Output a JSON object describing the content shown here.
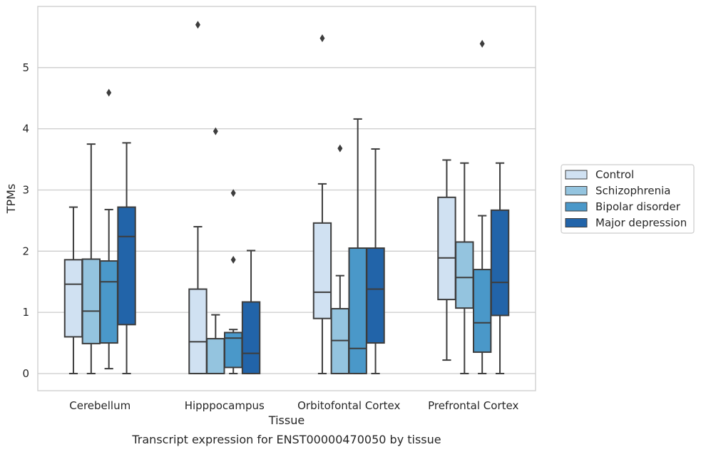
{
  "chart_data": {
    "type": "box",
    "title": "",
    "caption": "Transcript expression for ENST00000470050 by tissue",
    "xlabel": "Tissue",
    "ylabel": "TPMs",
    "ylim": [
      -0.28,
      6.0
    ],
    "yticks": [
      "0",
      "1",
      "2",
      "3",
      "4",
      "5"
    ],
    "grid": true,
    "legend_position": "right",
    "categories": [
      "Cerebellum",
      "Hipppocampus",
      "Orbitofontal Cortex",
      "Prefrontal Cortex"
    ],
    "series": [
      {
        "name": "Control",
        "color": "#d0e1f2",
        "boxes": [
          {
            "whislo": 0.0,
            "q1": 0.6,
            "med": 1.46,
            "q3": 1.86,
            "whishi": 2.72,
            "fliers": []
          },
          {
            "whislo": 0.0,
            "q1": 0.0,
            "med": 0.52,
            "q3": 1.38,
            "whishi": 2.4,
            "fliers": [
              5.7
            ]
          },
          {
            "whislo": 0.0,
            "q1": 0.9,
            "med": 1.33,
            "q3": 2.46,
            "whishi": 3.1,
            "fliers": [
              5.48
            ]
          },
          {
            "whislo": 0.22,
            "q1": 1.21,
            "med": 1.89,
            "q3": 2.88,
            "whishi": 3.49,
            "fliers": []
          }
        ]
      },
      {
        "name": "Schizophrenia",
        "color": "#94c4df",
        "boxes": [
          {
            "whislo": 0.0,
            "q1": 0.49,
            "med": 1.02,
            "q3": 1.87,
            "whishi": 3.75,
            "fliers": []
          },
          {
            "whislo": 0.0,
            "q1": 0.0,
            "med": 0.0,
            "q3": 0.57,
            "whishi": 0.96,
            "fliers": [
              3.96
            ]
          },
          {
            "whislo": 0.0,
            "q1": 0.0,
            "med": 0.54,
            "q3": 1.06,
            "whishi": 1.6,
            "fliers": [
              3.68
            ]
          },
          {
            "whislo": 0.0,
            "q1": 1.07,
            "med": 1.57,
            "q3": 2.15,
            "whishi": 3.44,
            "fliers": []
          }
        ]
      },
      {
        "name": "Bipolar disorder",
        "color": "#4a98c9",
        "boxes": [
          {
            "whislo": 0.08,
            "q1": 0.5,
            "med": 1.5,
            "q3": 1.84,
            "whishi": 2.68,
            "fliers": [
              4.59
            ]
          },
          {
            "whislo": 0.0,
            "q1": 0.1,
            "med": 0.58,
            "q3": 0.67,
            "whishi": 0.72,
            "fliers": [
              2.95,
              1.86
            ]
          },
          {
            "whislo": 0.0,
            "q1": 0.0,
            "med": 0.41,
            "q3": 2.05,
            "whishi": 4.16,
            "fliers": []
          },
          {
            "whislo": 0.0,
            "q1": 0.35,
            "med": 0.83,
            "q3": 1.7,
            "whishi": 2.58,
            "fliers": [
              5.39
            ]
          }
        ]
      },
      {
        "name": "Major depression",
        "color": "#2264a9",
        "boxes": [
          {
            "whislo": 0.0,
            "q1": 0.8,
            "med": 2.24,
            "q3": 2.72,
            "whishi": 3.77,
            "fliers": []
          },
          {
            "whislo": 0.0,
            "q1": 0.0,
            "med": 0.33,
            "q3": 1.17,
            "whishi": 2.01,
            "fliers": []
          },
          {
            "whislo": 0.0,
            "q1": 0.5,
            "med": 1.38,
            "q3": 2.05,
            "whishi": 3.67,
            "fliers": []
          },
          {
            "whislo": 0.0,
            "q1": 0.95,
            "med": 1.49,
            "q3": 2.67,
            "whishi": 3.44,
            "fliers": []
          }
        ]
      }
    ]
  }
}
